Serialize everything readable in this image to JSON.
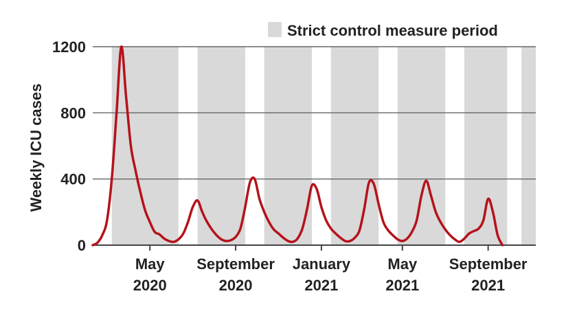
{
  "chart_data": {
    "type": "line",
    "ylabel": "Weekly ICU cases",
    "ylim": [
      0,
      1200
    ],
    "yticks": [
      0,
      400,
      800,
      1200
    ],
    "x_unit": "weeks since 2020-02-09",
    "xlim": [
      0,
      93
    ],
    "x_ticks": [
      {
        "x": 12,
        "line1": "May",
        "line2": "2020"
      },
      {
        "x": 30,
        "line1": "September",
        "line2": "2020"
      },
      {
        "x": 48,
        "line1": "January",
        "line2": "2021"
      },
      {
        "x": 65,
        "line1": "May",
        "line2": "2021"
      },
      {
        "x": 83,
        "line1": "September",
        "line2": "2021"
      }
    ],
    "legend": {
      "label": "Strict control measure period",
      "color": "#d9d9d9"
    },
    "strict_periods": [
      [
        4,
        18
      ],
      [
        22,
        32
      ],
      [
        36,
        46
      ],
      [
        50,
        60
      ],
      [
        64,
        74
      ],
      [
        78,
        87
      ],
      [
        90,
        93
      ]
    ],
    "series": [
      {
        "name": "Weekly ICU cases",
        "color": "#b5121b",
        "points": [
          [
            0,
            0
          ],
          [
            1,
            15
          ],
          [
            2,
            60
          ],
          [
            3,
            150
          ],
          [
            4,
            400
          ],
          [
            5,
            800
          ],
          [
            6,
            1200
          ],
          [
            7,
            900
          ],
          [
            8,
            600
          ],
          [
            9,
            450
          ],
          [
            10,
            320
          ],
          [
            11,
            210
          ],
          [
            12,
            140
          ],
          [
            13,
            80
          ],
          [
            14,
            65
          ],
          [
            15,
            40
          ],
          [
            16,
            25
          ],
          [
            17,
            20
          ],
          [
            18,
            35
          ],
          [
            19,
            70
          ],
          [
            20,
            140
          ],
          [
            21,
            230
          ],
          [
            22,
            270
          ],
          [
            23,
            200
          ],
          [
            24,
            140
          ],
          [
            25,
            95
          ],
          [
            26,
            60
          ],
          [
            27,
            35
          ],
          [
            28,
            25
          ],
          [
            29,
            30
          ],
          [
            30,
            50
          ],
          [
            31,
            100
          ],
          [
            32,
            230
          ],
          [
            33,
            380
          ],
          [
            34,
            400
          ],
          [
            35,
            280
          ],
          [
            36,
            200
          ],
          [
            37,
            140
          ],
          [
            38,
            95
          ],
          [
            39,
            70
          ],
          [
            40,
            45
          ],
          [
            41,
            25
          ],
          [
            42,
            20
          ],
          [
            43,
            40
          ],
          [
            44,
            100
          ],
          [
            45,
            220
          ],
          [
            46,
            360
          ],
          [
            47,
            340
          ],
          [
            48,
            230
          ],
          [
            49,
            150
          ],
          [
            50,
            100
          ],
          [
            51,
            70
          ],
          [
            52,
            45
          ],
          [
            53,
            25
          ],
          [
            54,
            25
          ],
          [
            55,
            45
          ],
          [
            56,
            90
          ],
          [
            57,
            220
          ],
          [
            58,
            380
          ],
          [
            59,
            370
          ],
          [
            60,
            250
          ],
          [
            61,
            140
          ],
          [
            62,
            90
          ],
          [
            63,
            60
          ],
          [
            64,
            35
          ],
          [
            65,
            25
          ],
          [
            66,
            40
          ],
          [
            67,
            80
          ],
          [
            68,
            150
          ],
          [
            69,
            300
          ],
          [
            70,
            390
          ],
          [
            71,
            300
          ],
          [
            72,
            200
          ],
          [
            73,
            140
          ],
          [
            74,
            95
          ],
          [
            75,
            60
          ],
          [
            76,
            35
          ],
          [
            77,
            20
          ],
          [
            78,
            40
          ],
          [
            79,
            70
          ],
          [
            80,
            85
          ],
          [
            81,
            100
          ],
          [
            82,
            150
          ],
          [
            83,
            280
          ],
          [
            84,
            200
          ],
          [
            85,
            60
          ],
          [
            86,
            0
          ]
        ]
      }
    ]
  }
}
